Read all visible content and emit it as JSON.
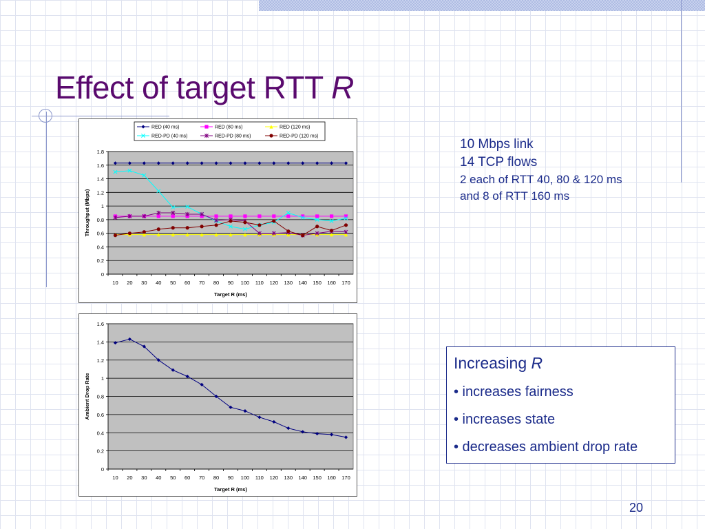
{
  "slide": {
    "title_main": "Effect of target RTT",
    "title_var": "R",
    "page_number": "20"
  },
  "info": {
    "line1": "10 Mbps link",
    "line2": "14 TCP flows",
    "line3": "2 each of RTT 40, 80 & 120 ms",
    "line4": "and 8 of RTT 160 ms"
  },
  "box": {
    "heading_text": "Increasing",
    "heading_var": "R",
    "bullets": [
      "• increases fairness",
      "• increases state",
      "• decreases ambient drop rate"
    ]
  },
  "colors": {
    "title": "#5a0a6e",
    "text": "#1b2b8a",
    "plot_bg": "#c0c0c0"
  },
  "chart_data": [
    {
      "type": "line",
      "xlabel": "Target R (ms)",
      "ylabel": "Throughput (Mbps)",
      "ylim": [
        0,
        1.8
      ],
      "yticks": [
        0,
        0.2,
        0.4,
        0.6,
        0.8,
        1,
        1.2,
        1.4,
        1.6,
        1.8
      ],
      "categories": [
        10,
        20,
        30,
        40,
        50,
        60,
        70,
        80,
        90,
        100,
        110,
        120,
        130,
        140,
        150,
        160,
        170
      ],
      "legend_position": "top",
      "grid": true,
      "series": [
        {
          "name": "RED (40 ms)",
          "color": "#000080",
          "marker": "diamond",
          "values": [
            1.63,
            1.63,
            1.63,
            1.63,
            1.63,
            1.63,
            1.63,
            1.63,
            1.63,
            1.63,
            1.63,
            1.63,
            1.63,
            1.63,
            1.63,
            1.63,
            1.63
          ]
        },
        {
          "name": "RED (80 ms)",
          "color": "#ff00ff",
          "marker": "square",
          "values": [
            0.85,
            0.85,
            0.85,
            0.85,
            0.85,
            0.85,
            0.85,
            0.85,
            0.85,
            0.85,
            0.85,
            0.85,
            0.85,
            0.85,
            0.85,
            0.85,
            0.85
          ]
        },
        {
          "name": "RED (120 ms)",
          "color": "#ffff00",
          "marker": "triangle",
          "values": [
            0.58,
            0.58,
            0.58,
            0.58,
            0.58,
            0.58,
            0.58,
            0.58,
            0.58,
            0.58,
            0.58,
            0.58,
            0.58,
            0.58,
            0.58,
            0.58,
            0.58
          ]
        },
        {
          "name": "RED-PD (40 ms)",
          "color": "#00ffff",
          "marker": "x",
          "values": [
            1.5,
            1.52,
            1.45,
            1.22,
            0.98,
            0.99,
            0.88,
            0.78,
            0.7,
            0.66,
            0.72,
            0.76,
            0.9,
            0.83,
            0.8,
            0.78,
            0.82
          ]
        },
        {
          "name": "RED-PD (80 ms)",
          "color": "#800080",
          "marker": "star",
          "values": [
            0.83,
            0.85,
            0.85,
            0.9,
            0.9,
            0.88,
            0.88,
            0.79,
            0.8,
            0.78,
            0.6,
            0.6,
            0.61,
            0.57,
            0.6,
            0.63,
            0.62
          ]
        },
        {
          "name": "RED-PD (120 ms)",
          "color": "#800000",
          "marker": "circle",
          "values": [
            0.57,
            0.6,
            0.62,
            0.66,
            0.68,
            0.68,
            0.7,
            0.72,
            0.78,
            0.76,
            0.72,
            0.78,
            0.63,
            0.57,
            0.7,
            0.64,
            0.72
          ]
        }
      ]
    },
    {
      "type": "line",
      "xlabel": "Target R (ms)",
      "ylabel": "Ambient Drop Rate",
      "ylim": [
        0,
        1.6
      ],
      "yticks": [
        0,
        0.2,
        0.4,
        0.6,
        0.8,
        1,
        1.2,
        1.4,
        1.6
      ],
      "categories": [
        10,
        20,
        30,
        40,
        50,
        60,
        70,
        80,
        90,
        100,
        110,
        120,
        130,
        140,
        150,
        160,
        170
      ],
      "grid": true,
      "series": [
        {
          "color": "#000080",
          "marker": "diamond",
          "values": [
            1.39,
            1.43,
            1.35,
            1.2,
            1.09,
            1.02,
            0.93,
            0.8,
            0.68,
            0.64,
            0.57,
            0.52,
            0.45,
            0.41,
            0.39,
            0.38,
            0.35
          ]
        }
      ]
    }
  ]
}
